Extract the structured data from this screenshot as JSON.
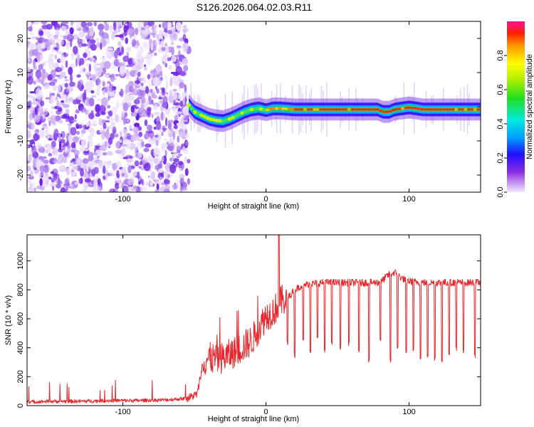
{
  "title": "S126.2026.064.02.03.R11",
  "chart_data": [
    {
      "type": "heatmap",
      "xlabel": "Height of straight line (km)",
      "ylabel": "Frequency (Hz)",
      "xlim": [
        -167,
        150
      ],
      "ylim": [
        -25,
        25
      ],
      "x_ticks": [
        -100,
        0,
        100
      ],
      "y_ticks": [
        -20,
        -10,
        0,
        10,
        20
      ],
      "noise_region_x": [
        -167,
        -54
      ],
      "ridge": {
        "x": [
          -54,
          -50,
          -45,
          -40,
          -35,
          -30,
          -25,
          -20,
          -15,
          -10,
          -5,
          0,
          5,
          10,
          20,
          40,
          60,
          78,
          82,
          86,
          90,
          95,
          100,
          110,
          120,
          150
        ],
        "y": [
          0.5,
          -1.5,
          -2.5,
          -3.5,
          -4,
          -4.2,
          -3.5,
          -2.5,
          -1.5,
          -0.8,
          -0.5,
          -1,
          -0.5,
          -0.5,
          -0.8,
          -0.8,
          -0.8,
          -0.8,
          -1.5,
          -1.5,
          -0.8,
          -0.5,
          -0.2,
          -0.8,
          -0.8,
          -0.8
        ]
      },
      "colorbar": {
        "label": "Normalized spectral amplitude",
        "range": [
          0,
          1
        ],
        "ticks": [
          "0.0",
          "0.2",
          "0.4",
          "0.6",
          "0.8"
        ],
        "tick_values": [
          0.0,
          0.2,
          0.4,
          0.6,
          0.8
        ]
      }
    },
    {
      "type": "line",
      "xlabel": "Height of straight line (km)",
      "ylabel": "SNR (10 * v/v)",
      "xlim": [
        -167,
        150
      ],
      "ylim": [
        0,
        1180
      ],
      "x_ticks": [
        -100,
        0,
        100
      ],
      "y_ticks": [
        0,
        200,
        400,
        600,
        800,
        1000
      ],
      "series": [
        {
          "name": "SNR",
          "color": "#e8262b",
          "x": [
            -167,
            -150,
            -130,
            -110,
            -90,
            -70,
            -55,
            -48,
            -44,
            -40,
            -35,
            -30,
            -20,
            -10,
            0,
            6,
            10,
            15,
            20,
            25,
            30,
            40,
            60,
            80,
            85,
            90,
            95,
            100,
            110,
            120,
            150
          ],
          "y": [
            25,
            30,
            30,
            35,
            35,
            40,
            50,
            80,
            300,
            330,
            320,
            330,
            380,
            450,
            620,
            660,
            720,
            740,
            800,
            830,
            840,
            850,
            850,
            850,
            900,
            920,
            880,
            860,
            850,
            850,
            850
          ]
        }
      ],
      "dropouts": {
        "x": [
          15,
          20,
          26,
          31,
          36,
          41,
          46,
          52,
          58,
          65,
          72,
          80,
          87,
          92,
          98,
          103,
          108,
          113,
          118,
          123,
          128,
          133,
          138,
          146
        ],
        "y": [
          410,
          330,
          420,
          360,
          450,
          370,
          420,
          380,
          410,
          360,
          300,
          440,
          290,
          380,
          340,
          370,
          300,
          330,
          310,
          300,
          350,
          380,
          350,
          330
        ]
      },
      "peak": {
        "x": 9,
        "y": 1180
      }
    }
  ]
}
